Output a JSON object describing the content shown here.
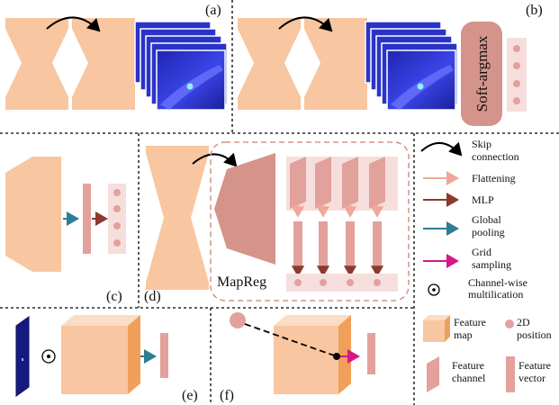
{
  "panels": {
    "a": "(a)",
    "b": "(b)",
    "c": "(c)",
    "d": "(d)",
    "e": "(e)",
    "f": "(f)"
  },
  "soft_argmax_label": "Soft-argmax",
  "mapreg_label": "MapReg",
  "legend": {
    "skip": [
      "Skip",
      "connection"
    ],
    "flattening": "Flattening",
    "mlp": "MLP",
    "global_pooling": [
      "Global",
      "pooling"
    ],
    "grid_sampling": [
      "Grid",
      "sampling"
    ],
    "channel_mult": [
      "Channel-wise",
      "multilication"
    ],
    "feature_map": [
      "Feature",
      "map"
    ],
    "position_2d": [
      "2D",
      "position"
    ],
    "feature_channel": [
      "Feature",
      "channel"
    ],
    "feature_vector": [
      "Feature",
      "vector"
    ]
  },
  "colors": {
    "encoder": "#f8c6a0",
    "decoder_dark": "#d4938b",
    "feature_pink": "#e3a19c",
    "light_pink_bg": "#f6dedc",
    "flatten_arrow": "#f0a79a",
    "mlp_arrow": "#8b3a2e",
    "pool_arrow": "#2e7d92",
    "grid_arrow": "#d6198a",
    "heatmap_blue": "#2f3ad6"
  },
  "icons": [
    "curved-arrow-icon",
    "circled-dot-icon",
    "cube-icon",
    "dot-icon"
  ]
}
